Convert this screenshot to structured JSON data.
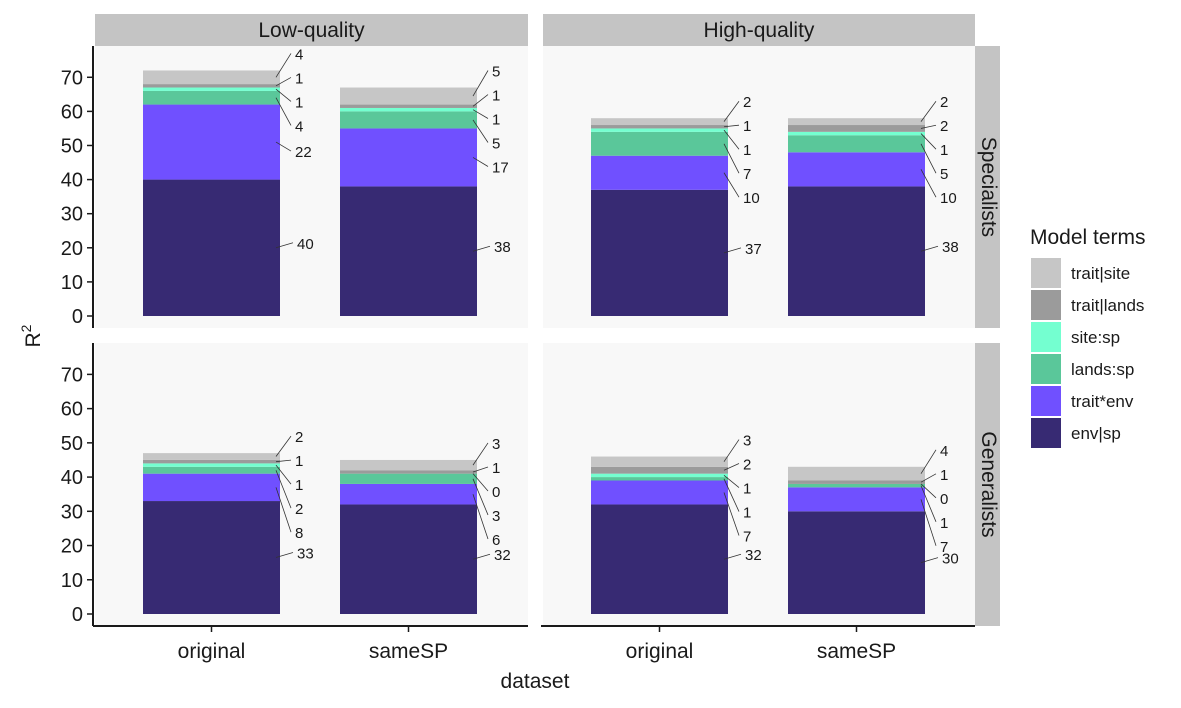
{
  "chart_data": {
    "type": "bar",
    "stacked": true,
    "xlabel": "dataset",
    "ylabel": "R",
    "ylabel_sup": "2",
    "ylim": [
      0,
      78
    ],
    "yticks": [
      0,
      10,
      20,
      30,
      40,
      50,
      60,
      70
    ],
    "categories": [
      "original",
      "sameSP"
    ],
    "col_facets": [
      "Low-quality",
      "High-quality"
    ],
    "row_facets": [
      "Specialists",
      "Generalists"
    ],
    "legend": {
      "title": "Model terms",
      "position": "right",
      "items": [
        {
          "name": "trait|site",
          "color": "#c6c6c6"
        },
        {
          "name": "trait|lands",
          "color": "#9b9b9b"
        },
        {
          "name": "site:sp",
          "color": "#74ffd0"
        },
        {
          "name": "lands:sp",
          "color": "#5ac79a"
        },
        {
          "name": "trait*env",
          "color": "#7050ff"
        },
        {
          "name": "env|sp",
          "color": "#372a73"
        }
      ]
    },
    "stack_order": [
      "env|sp",
      "trait*env",
      "lands:sp",
      "site:sp",
      "trait|lands",
      "trait|site"
    ],
    "panels": [
      {
        "row": "Specialists",
        "col": "Low-quality",
        "bars": [
          {
            "category": "original",
            "env|sp": 40,
            "trait*env": 22,
            "lands:sp": 4,
            "site:sp": 1,
            "trait|lands": 1,
            "trait|site": 4
          },
          {
            "category": "sameSP",
            "env|sp": 38,
            "trait*env": 17,
            "lands:sp": 5,
            "site:sp": 1,
            "trait|lands": 1,
            "trait|site": 5
          }
        ]
      },
      {
        "row": "Specialists",
        "col": "High-quality",
        "bars": [
          {
            "category": "original",
            "env|sp": 37,
            "trait*env": 10,
            "lands:sp": 7,
            "site:sp": 1,
            "trait|lands": 1,
            "trait|site": 2
          },
          {
            "category": "sameSP",
            "env|sp": 38,
            "trait*env": 10,
            "lands:sp": 5,
            "site:sp": 1,
            "trait|lands": 2,
            "trait|site": 2
          }
        ]
      },
      {
        "row": "Generalists",
        "col": "Low-quality",
        "bars": [
          {
            "category": "original",
            "env|sp": 33,
            "trait*env": 8,
            "lands:sp": 2,
            "site:sp": 1,
            "trait|lands": 1,
            "trait|site": 2
          },
          {
            "category": "sameSP",
            "env|sp": 32,
            "trait*env": 6,
            "lands:sp": 3,
            "site:sp": 0,
            "trait|lands": 1,
            "trait|site": 3
          }
        ]
      },
      {
        "row": "Generalists",
        "col": "High-quality",
        "bars": [
          {
            "category": "original",
            "env|sp": 32,
            "trait*env": 7,
            "lands:sp": 1,
            "site:sp": 1,
            "trait|lands": 2,
            "trait|site": 3
          },
          {
            "category": "sameSP",
            "env|sp": 30,
            "trait*env": 7,
            "lands:sp": 1,
            "site:sp": 0,
            "trait|lands": 1,
            "trait|site": 4
          }
        ]
      }
    ]
  }
}
